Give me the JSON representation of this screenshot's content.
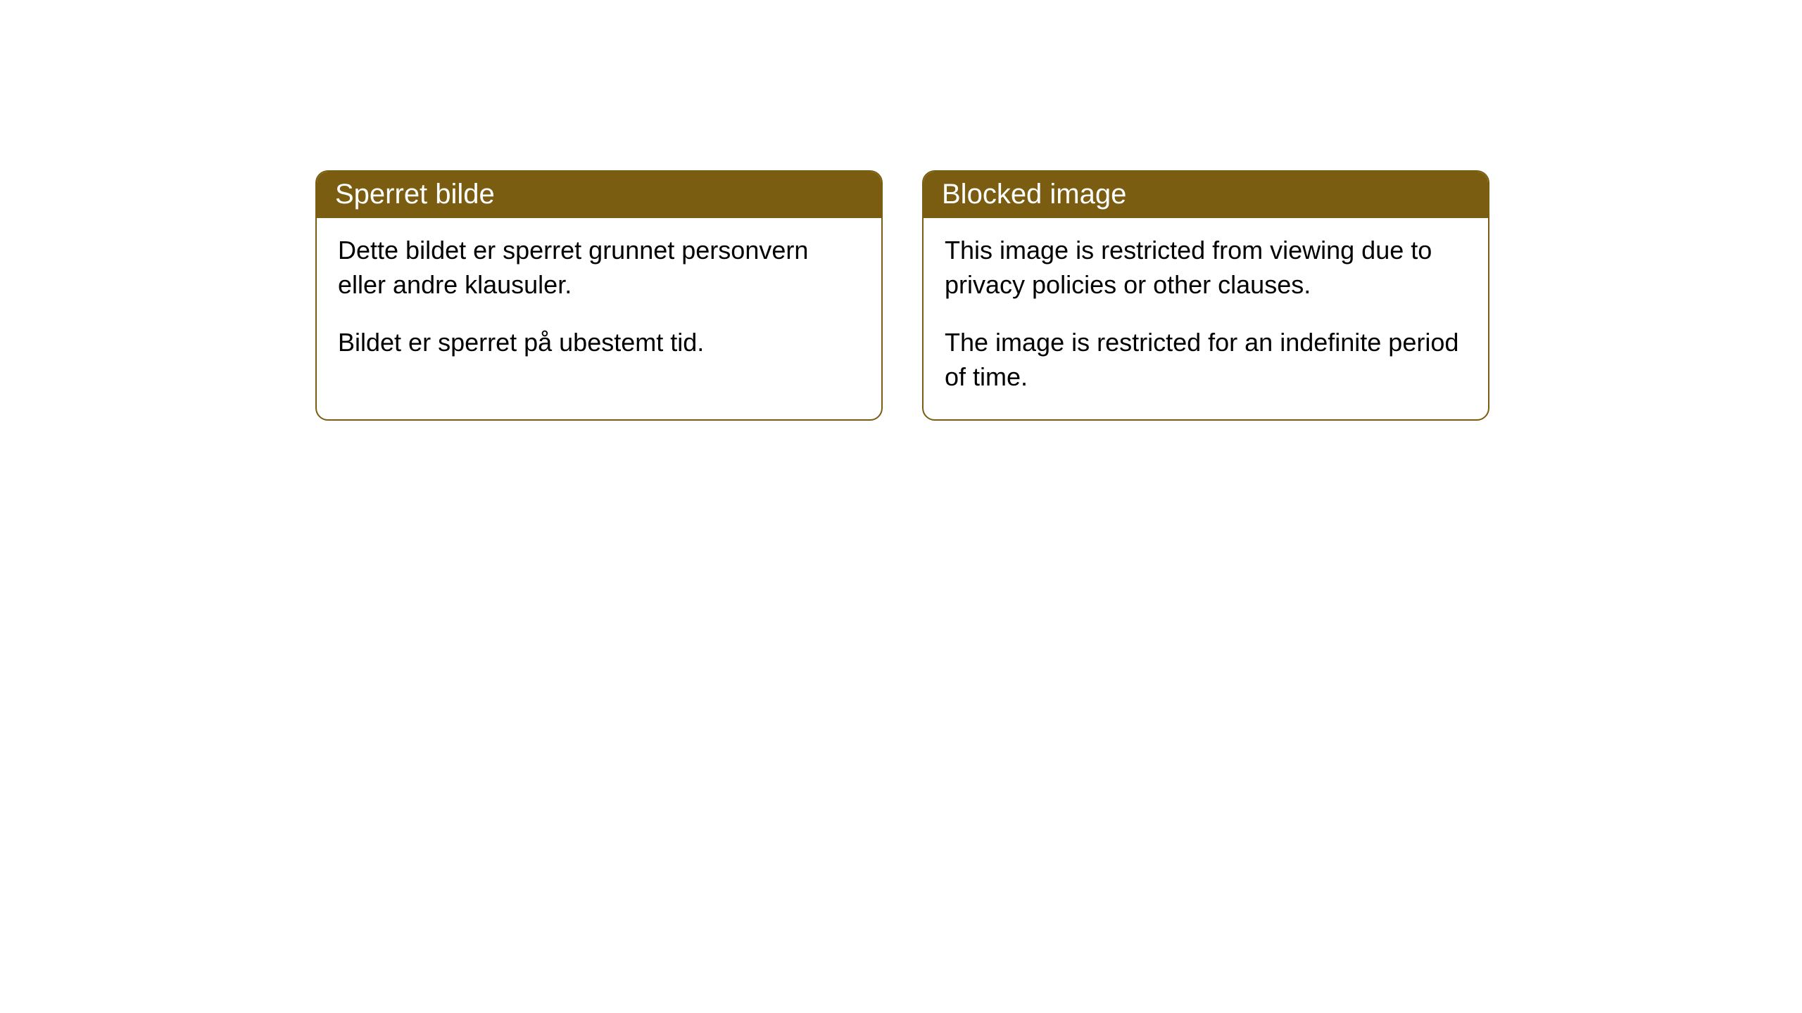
{
  "cards": [
    {
      "title": "Sperret bilde",
      "paragraph1": "Dette bildet er sperret grunnet personvern eller andre klausuler.",
      "paragraph2": "Bildet er sperret på ubestemt tid."
    },
    {
      "title": "Blocked image",
      "paragraph1": "This image is restricted from viewing due to privacy policies or other clauses.",
      "paragraph2": "The image is restricted for an indefinite period of time."
    }
  ],
  "style": {
    "header_background": "#7a5d11",
    "header_text_color": "#ffffff",
    "border_color": "#7a5d11",
    "body_background": "#ffffff",
    "body_text_color": "#000000",
    "border_radius": 18,
    "header_fontsize": 40,
    "body_fontsize": 36
  }
}
